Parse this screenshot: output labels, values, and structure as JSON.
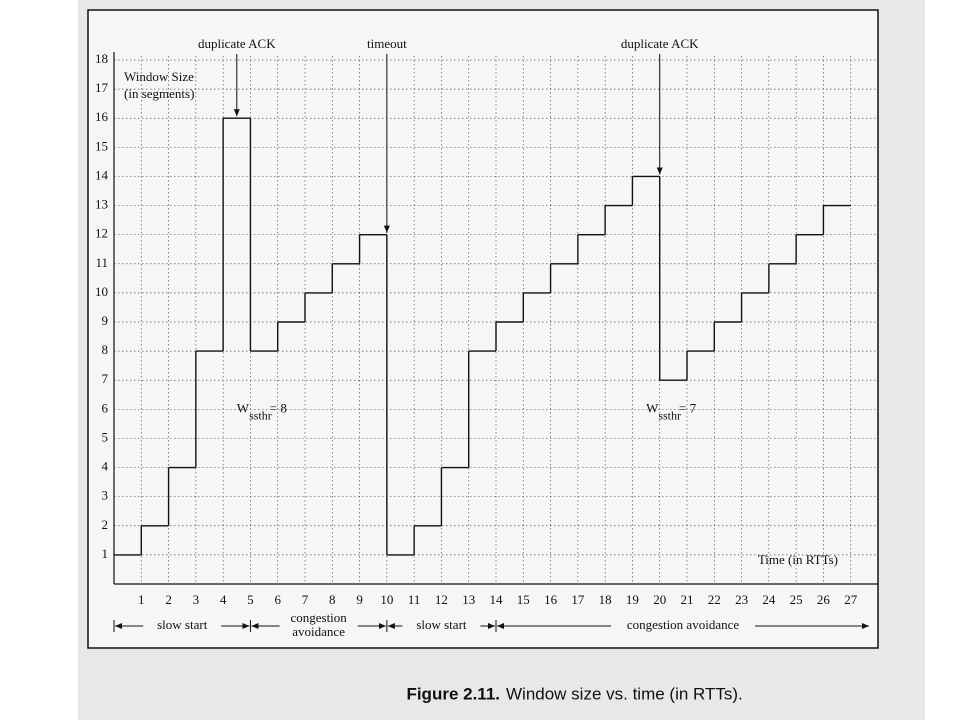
{
  "chart_data": {
    "type": "step",
    "ylabel": [
      "Window Size",
      "(in segments)"
    ],
    "xlabel": "Time (in RTTs)",
    "x": [
      0,
      1,
      2,
      3,
      4,
      5,
      6,
      7,
      8,
      9,
      10,
      11,
      12,
      13,
      14,
      15,
      16,
      17,
      18,
      19,
      20,
      21,
      22,
      23,
      24,
      25,
      26
    ],
    "values": [
      1,
      2,
      4,
      8,
      16,
      8,
      9,
      10,
      11,
      12,
      1,
      2,
      4,
      8,
      9,
      10,
      11,
      12,
      13,
      14,
      7,
      8,
      9,
      10,
      11,
      12,
      13
    ],
    "color": "#111111",
    "xlim": [
      0,
      28
    ],
    "ylim": [
      0,
      18
    ],
    "xticks": [
      1,
      2,
      3,
      4,
      5,
      6,
      7,
      8,
      9,
      10,
      11,
      12,
      13,
      14,
      15,
      16,
      17,
      18,
      19,
      20,
      21,
      22,
      23,
      24,
      25,
      26,
      27
    ],
    "yticks": [
      1,
      2,
      3,
      4,
      5,
      6,
      7,
      8,
      9,
      10,
      11,
      12,
      13,
      14,
      15,
      16,
      17,
      18
    ],
    "grid": true,
    "events": [
      {
        "text": "duplicate ACK",
        "x": 4.5,
        "y": 16
      },
      {
        "text": "timeout",
        "x": 10,
        "y": 12
      },
      {
        "text": "duplicate ACK",
        "x": 20,
        "y": 14
      }
    ],
    "thresholds": [
      {
        "symbol": "W",
        "sub": "ssthr",
        "text": "= 8",
        "x": 4.5,
        "y": 6
      },
      {
        "symbol": "W",
        "sub": "ssthr",
        "text": "= 7",
        "x": 19.5,
        "y": 6
      }
    ],
    "phases": [
      {
        "label": [
          "slow start"
        ],
        "from": 0,
        "to": 5
      },
      {
        "label": [
          "congestion",
          "avoidance"
        ],
        "from": 5,
        "to": 10
      },
      {
        "label": [
          "slow start"
        ],
        "from": 10,
        "to": 14
      },
      {
        "label": [
          "congestion avoidance"
        ],
        "from": 14,
        "to": 28
      }
    ],
    "caption": {
      "number": "Figure 2.11.",
      "text": "Window size vs. time (in RTTs)."
    }
  }
}
